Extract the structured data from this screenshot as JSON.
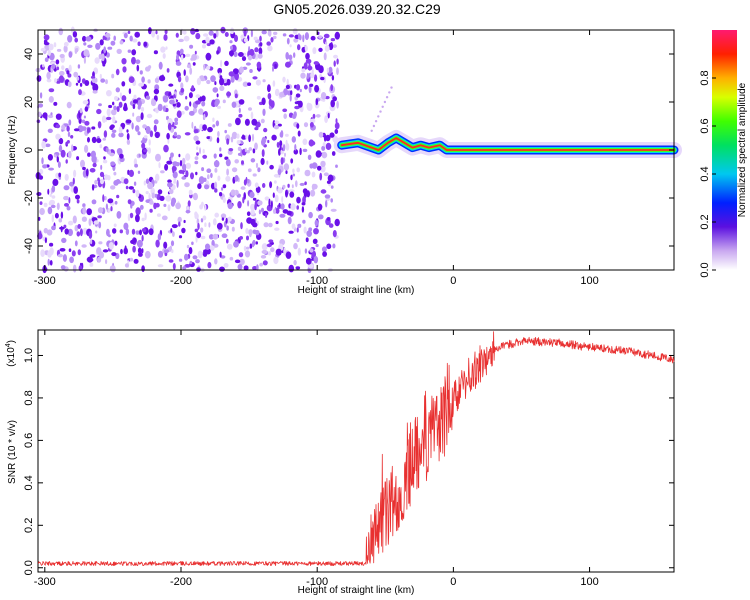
{
  "title": "GN05.2026.039.20.32.C29",
  "chart_data": [
    {
      "type": "heatmap",
      "name": "spectrogram",
      "xlabel": "Height of straight line (km)",
      "ylabel": "Frequency (Hz)",
      "xlim": [
        -305,
        162
      ],
      "ylim": [
        -50,
        50
      ],
      "xticks": [
        -300,
        -200,
        -100,
        0,
        100
      ],
      "yticks": [
        -40,
        -20,
        0,
        20,
        40
      ],
      "noise_region_end": -85,
      "tone_track": [
        {
          "x": -82,
          "y": 2
        },
        {
          "x": -70,
          "y": 3
        },
        {
          "x": -60,
          "y": 1
        },
        {
          "x": -55,
          "y": 0
        },
        {
          "x": -48,
          "y": 3
        },
        {
          "x": -42,
          "y": 5
        },
        {
          "x": -36,
          "y": 3
        },
        {
          "x": -30,
          "y": 1
        },
        {
          "x": -24,
          "y": 2
        },
        {
          "x": -18,
          "y": 1
        },
        {
          "x": -10,
          "y": 2
        },
        {
          "x": -5,
          "y": 0
        },
        {
          "x": 0,
          "y": 0
        },
        {
          "x": 60,
          "y": 0
        },
        {
          "x": 120,
          "y": 0
        },
        {
          "x": 162,
          "y": 0
        }
      ],
      "colorbar": {
        "label": "Normalized spectral amplitude",
        "range": [
          0,
          1
        ],
        "ticks": [
          0.0,
          0.2,
          0.4,
          0.6,
          0.8
        ],
        "tick_labels": [
          "0.0",
          "0.2",
          "0.4",
          "0.6",
          "0.8"
        ]
      }
    },
    {
      "type": "line",
      "name": "snr",
      "xlabel": "Height of straight line (km)",
      "ylabel": "SNR (10 * v/v)",
      "scale_label": "(x10",
      "scale_exponent": "4",
      "xlim": [
        -305,
        162
      ],
      "ylim": [
        -0.02,
        1.12
      ],
      "xticks": [
        -300,
        -200,
        -100,
        0,
        100
      ],
      "yticks": [
        0.0,
        0.2,
        0.4,
        0.6,
        0.8,
        1.0
      ],
      "color": "#e83030",
      "envelope": [
        {
          "x": -305,
          "y": 0.01
        },
        {
          "x": -64,
          "y": 0.01
        },
        {
          "x": -60,
          "y": 0.1
        },
        {
          "x": -55,
          "y": 0.2
        },
        {
          "x": -48,
          "y": 0.28
        },
        {
          "x": -40,
          "y": 0.38
        },
        {
          "x": -30,
          "y": 0.55
        },
        {
          "x": -20,
          "y": 0.65
        },
        {
          "x": -10,
          "y": 0.72
        },
        {
          "x": 0,
          "y": 0.8
        },
        {
          "x": 15,
          "y": 0.92
        },
        {
          "x": 30,
          "y": 1.03
        },
        {
          "x": 50,
          "y": 1.07
        },
        {
          "x": 75,
          "y": 1.06
        },
        {
          "x": 100,
          "y": 1.04
        },
        {
          "x": 130,
          "y": 1.02
        },
        {
          "x": 162,
          "y": 0.98
        }
      ]
    }
  ]
}
